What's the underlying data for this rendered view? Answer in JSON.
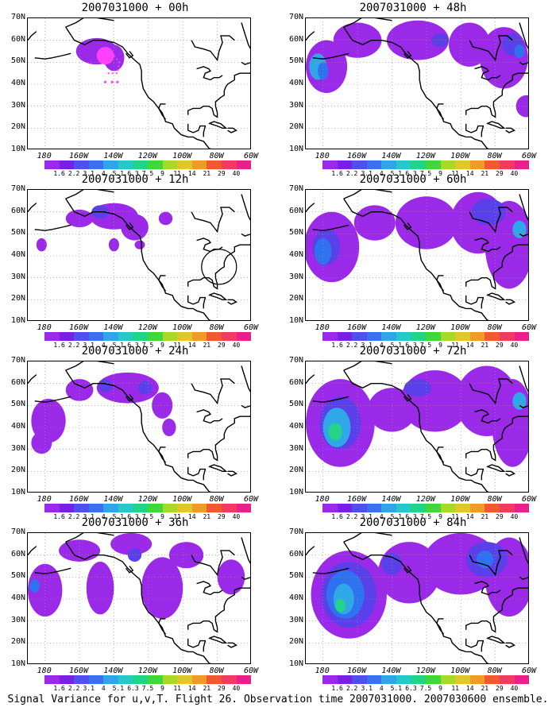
{
  "caption": "Signal Variance for u,v,T. Flight 26. Observation time 2007031000. 2007030600 ensemble.",
  "panels": [
    {
      "title": "2007031000 + 00h"
    },
    {
      "title": "2007031000 + 12h"
    },
    {
      "title": "2007031000 + 24h"
    },
    {
      "title": "2007031000 + 36h"
    },
    {
      "title": "2007031000 + 48h"
    },
    {
      "title": "2007031000 + 60h"
    },
    {
      "title": "2007031000 + 72h"
    },
    {
      "title": "2007031000 + 84h"
    }
  ],
  "lat_labels": [
    "70N",
    "60N",
    "50N",
    "40N",
    "30N",
    "20N",
    "10N"
  ],
  "lon_labels": [
    "180",
    "160W",
    "140W",
    "120W",
    "100W",
    "80W",
    "60W"
  ],
  "colorbar": {
    "labels": [
      "1.6",
      "2.2",
      "3.1",
      "4",
      "5.1",
      "6.3",
      "7.5",
      "9",
      "11",
      "14",
      "21",
      "29",
      "40"
    ],
    "colors": [
      "#9a2ae8",
      "#7a1fe8",
      "#5050ef",
      "#3c6ef0",
      "#2fa6e8",
      "#28c8c8",
      "#22d48a",
      "#40d838",
      "#a8d828",
      "#e0c828",
      "#f09a28",
      "#f05a30",
      "#f03a60",
      "#e8208c"
    ]
  },
  "map": {
    "extent": {
      "lon": [
        -190,
        -60
      ],
      "lat": [
        10,
        70
      ]
    },
    "colors": {
      "low": "#9a2ae8",
      "mid": "#5a40e8",
      "blue": "#2f72f0",
      "light": "#30a8e8",
      "teal": "#26c8b0",
      "green": "#22d48a",
      "pink": "#ff40ff"
    }
  },
  "chart_data": {
    "type": "heatmap",
    "title": "Signal Variance for u,v,T. Flight 26. Observation time 2007031000. 2007030600 ensemble.",
    "xlabel": "",
    "ylabel": "",
    "lon_range": [
      -190,
      -60
    ],
    "lat_range": [
      10,
      70
    ],
    "levels": [
      1.6,
      2.2,
      3.1,
      4,
      5.1,
      6.3,
      7.5,
      9,
      11,
      14,
      21,
      29,
      40
    ],
    "series": [
      {
        "name": "2007031000 + 00h"
      },
      {
        "name": "2007031000 + 12h"
      },
      {
        "name": "2007031000 + 24h"
      },
      {
        "name": "2007031000 + 36h"
      },
      {
        "name": "2007031000 + 48h"
      },
      {
        "name": "2007031000 + 60h"
      },
      {
        "name": "2007031000 + 72h"
      },
      {
        "name": "2007031000 + 84h"
      }
    ]
  }
}
